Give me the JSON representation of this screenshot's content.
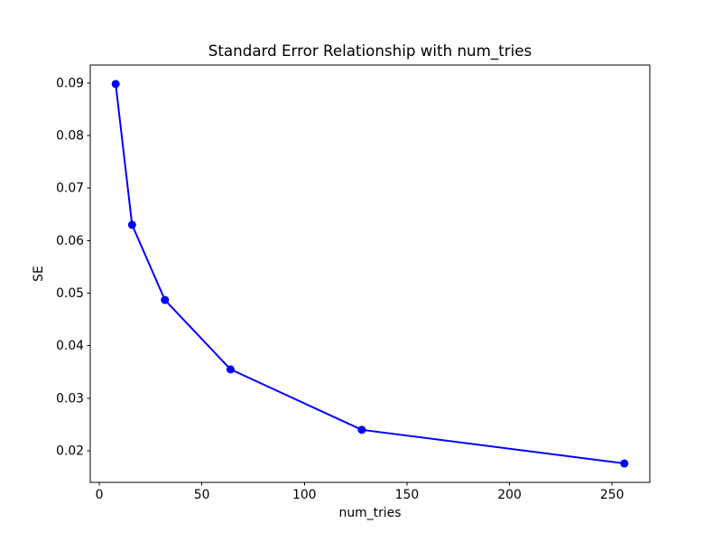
{
  "figure": {
    "background": "#ffffff"
  },
  "chart_data": {
    "type": "line",
    "title": "Standard Error Relationship with num_tries",
    "xlabel": "num_tries",
    "ylabel": "SE",
    "x": [
      8,
      16,
      32,
      64,
      128,
      256
    ],
    "series": [
      {
        "name": "SE",
        "values": [
          0.0898,
          0.063,
          0.0487,
          0.0355,
          0.024,
          0.0176
        ]
      }
    ],
    "line_color": "#0000ff",
    "marker": "circle",
    "marker_color": "#0000ff",
    "xlim": [
      -4.4,
      268.4
    ],
    "ylim": [
      0.014,
      0.0934
    ],
    "xticks": [
      0,
      50,
      100,
      150,
      200,
      250
    ],
    "yticks": [
      0.02,
      0.03,
      0.04,
      0.05,
      0.06,
      0.07,
      0.08,
      0.09
    ],
    "ytick_decimals": 2,
    "grid": false,
    "legend": false,
    "axis_color": "#000000",
    "text_color": "#000000"
  }
}
